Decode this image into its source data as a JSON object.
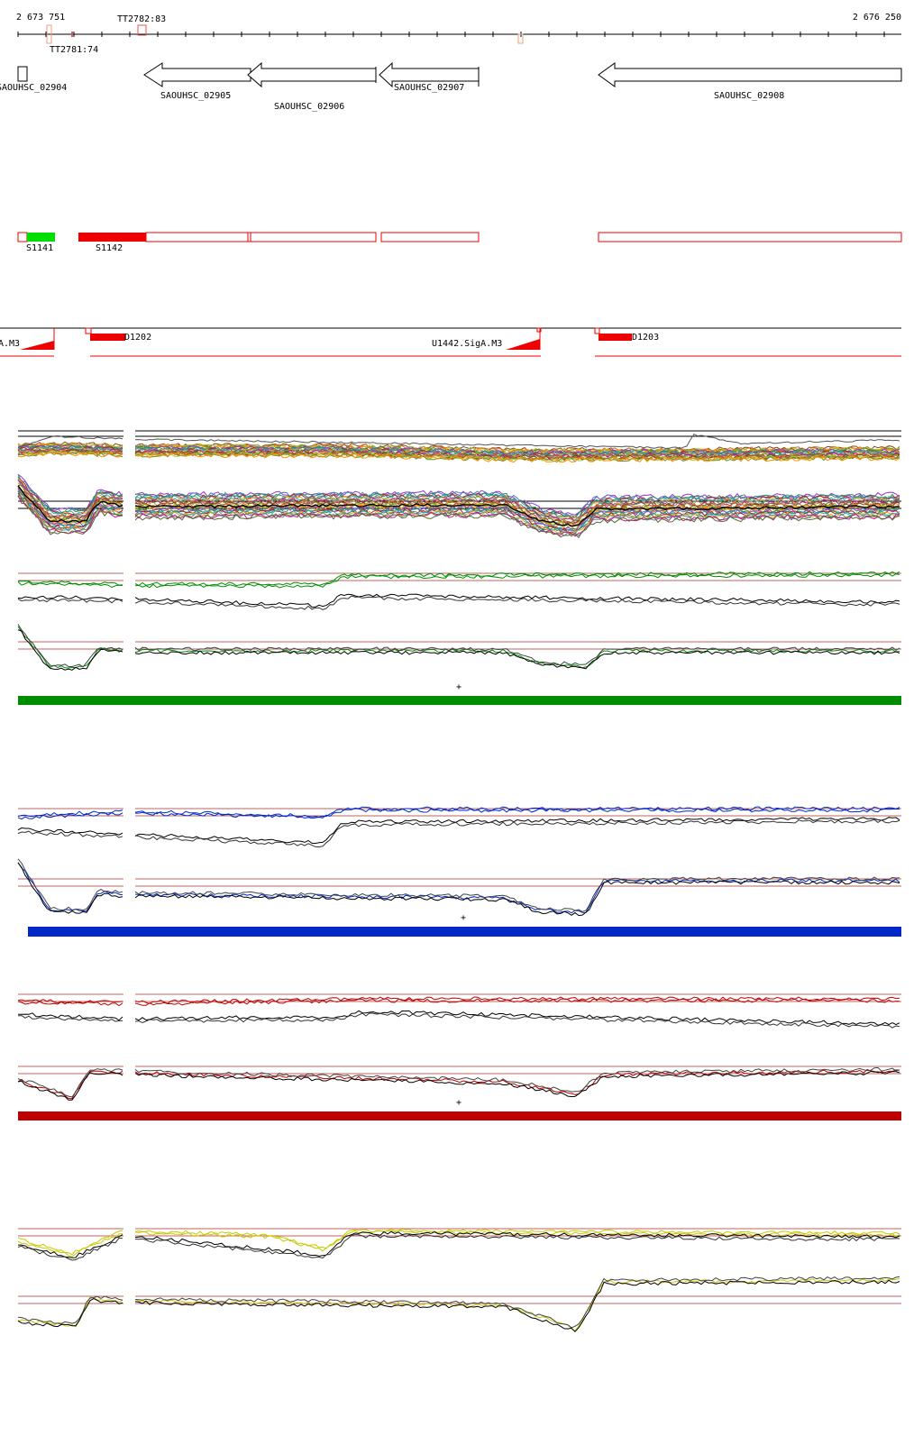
{
  "ruler": {
    "start_label": "2 673 751",
    "end_label": "2 676 250",
    "markers": [
      {
        "label": "TT2781:74"
      },
      {
        "label": "TT2782:83"
      }
    ]
  },
  "genes": [
    {
      "label": "SAOUHSC_02904",
      "strand": "forward"
    },
    {
      "label": "SAOUHSC_02905",
      "strand": "reverse"
    },
    {
      "label": "SAOUHSC_02906",
      "strand": "reverse"
    },
    {
      "label": "SAOUHSC_02907",
      "strand": "reverse"
    },
    {
      "label": "SAOUHSC_02908",
      "strand": "reverse"
    }
  ],
  "segments": [
    {
      "label": "S1141",
      "color": "#00dd00"
    },
    {
      "label": "S1142",
      "color": "#ee0000"
    }
  ],
  "promoters": [
    {
      "label": "A.M3"
    },
    {
      "label": "U1442.SigA.M3"
    }
  ],
  "domains": [
    {
      "label": "D1202"
    },
    {
      "label": "D1203"
    }
  ],
  "track_colors": {
    "green": "#008c00",
    "blue": "#0028c8",
    "red": "#be0000",
    "yellow": "#c8c800",
    "threshold": "#aa3333"
  },
  "panels": [
    {
      "color_key": "green",
      "strand_mark": "+"
    },
    {
      "color_key": "blue",
      "strand_mark": "+"
    },
    {
      "color_key": "red",
      "strand_mark": "+"
    },
    {
      "color_key": "yellow",
      "strand_mark": ""
    }
  ]
}
